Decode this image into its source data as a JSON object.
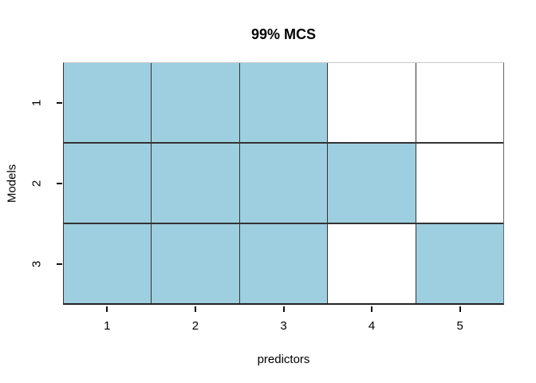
{
  "title": "99% MCS",
  "x_axis": {
    "label": "predictors",
    "ticks": [
      "1",
      "2",
      "3",
      "4",
      "5"
    ]
  },
  "y_axis": {
    "label": "Models",
    "ticks": [
      "1",
      "2",
      "3"
    ]
  },
  "colors": {
    "cell_selected": "#9ECFE0",
    "cell_unselected": "#FFFFFF",
    "grid_line": "#333333",
    "box_top": "#C9C9C9",
    "box_right": "#666666",
    "box_bottom": "#222222",
    "text": "#000000",
    "background": "#FFFFFF"
  },
  "chart_data": {
    "type": "heatmap",
    "title": "99% MCS",
    "xlabel": "predictors",
    "ylabel": "Models",
    "x": [
      1,
      2,
      3,
      4,
      5
    ],
    "y": [
      1,
      2,
      3
    ],
    "xlim": [
      0.5,
      5.5
    ],
    "ylim": [
      0.5,
      3.5
    ],
    "y_axis_reversed_top_to_bottom": true,
    "legend_position": "none",
    "grid": "cell-borders-on",
    "matrix_rows_are_models_top_to_bottom": true,
    "matrix": [
      [
        1,
        1,
        1,
        0,
        0
      ],
      [
        1,
        1,
        1,
        1,
        0
      ],
      [
        1,
        1,
        1,
        0,
        1
      ]
    ],
    "value_meaning": {
      "1": "included (lightblue cell)",
      "0": "excluded (white cell)"
    }
  }
}
